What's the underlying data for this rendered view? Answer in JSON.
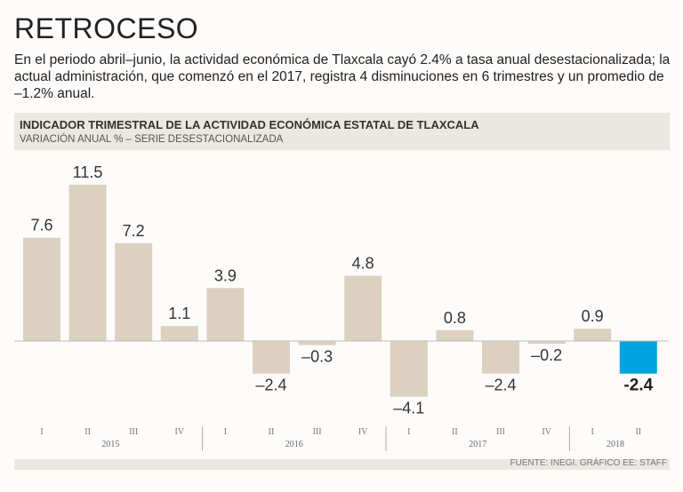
{
  "header": {
    "title": "RETROCESO",
    "lede": "En el periodo abril–junio, la actividad económica de Tlaxcala cayó 2.4% a tasa anual desestacionalizada; la actual administración, que comenzó en el 2017, registra 4 disminuciones en 6 trimestres y un promedio de –1.2% anual."
  },
  "footer": {
    "source": "FUENTE: INEGI. GRÁFICO EE: STAFF"
  },
  "chart_data": {
    "type": "bar",
    "title": "INDICADOR TRIMESTRAL DE LA ACTIVIDAD ECONÓMICA ESTATAL DE TLAXCALA",
    "subtitle": "VARIACIÓN ANUAL % – SERIE DESESTACIONALIZADA",
    "categories": [
      "I",
      "II",
      "III",
      "IV",
      "I",
      "II",
      "III",
      "IV",
      "I",
      "II",
      "III",
      "IV",
      "I",
      "II"
    ],
    "year_groups": [
      {
        "label": "2015",
        "count": 4
      },
      {
        "label": "2016",
        "count": 4
      },
      {
        "label": "2017",
        "count": 4
      },
      {
        "label": "2018",
        "count": 2
      }
    ],
    "values": [
      7.6,
      11.5,
      7.2,
      1.1,
      3.9,
      -2.4,
      -0.3,
      4.8,
      -4.1,
      0.8,
      -2.4,
      -0.2,
      0.9,
      -2.4
    ],
    "value_labels": [
      "7.6",
      "11.5",
      "7.2",
      "1.1",
      "3.9",
      "–2.4",
      "–0.3",
      "4.8",
      "–4.1",
      "0.8",
      "–2.4",
      "–0.2",
      "0.9",
      "-2.4"
    ],
    "highlight_index": 13,
    "colors": {
      "bar": "#dcd0c0",
      "highlight": "#00a3e0",
      "zero_line": "#bbbbbb",
      "label": "#333333"
    },
    "grid": false
  }
}
